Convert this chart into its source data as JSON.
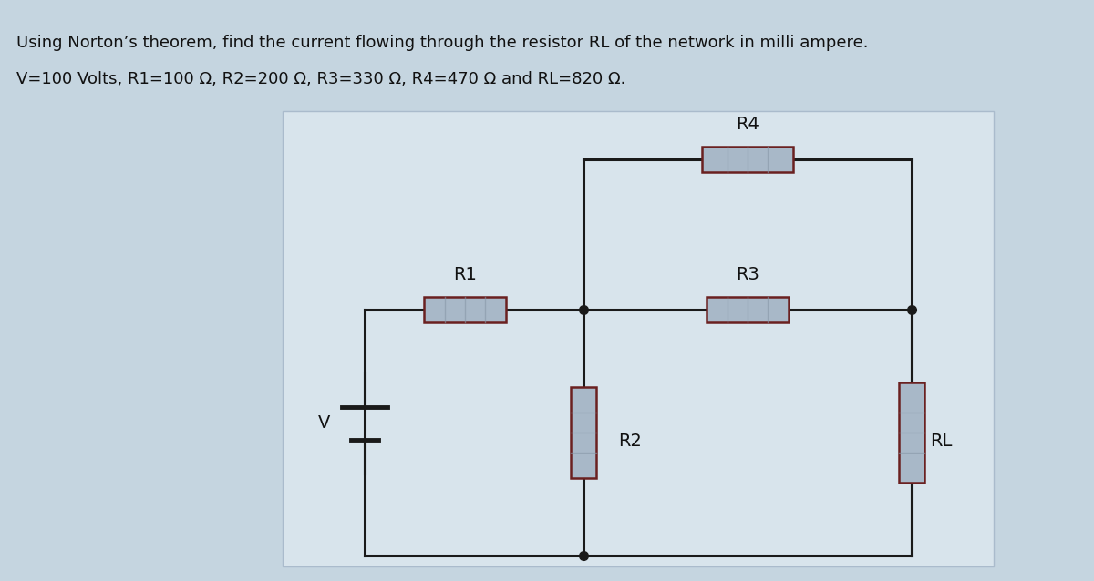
{
  "title_line1": "Using Norton’s theorem, find the current flowing through the resistor RL of the network in milli ampere.",
  "title_line2": "V=100 Volts, R1=100 Ω, R2=200 Ω, R3=330 Ω, R4=470 Ω and RL=820 Ω.",
  "outer_bg": "#c5d5e0",
  "panel_bg": "#d8e4ec",
  "wire_color": "#1a1a1a",
  "resistor_fill": "#a8b8c8",
  "resistor_edge": "#6a2020",
  "resistor_stripe": "#8898a8",
  "text_color": "#111111",
  "title_fs": 13,
  "label_fs": 14,
  "lw": 2.2,
  "labels": {
    "V": "V",
    "R1": "R1",
    "R2": "R2",
    "R3": "R3",
    "R4": "R4",
    "RL": "RL"
  }
}
